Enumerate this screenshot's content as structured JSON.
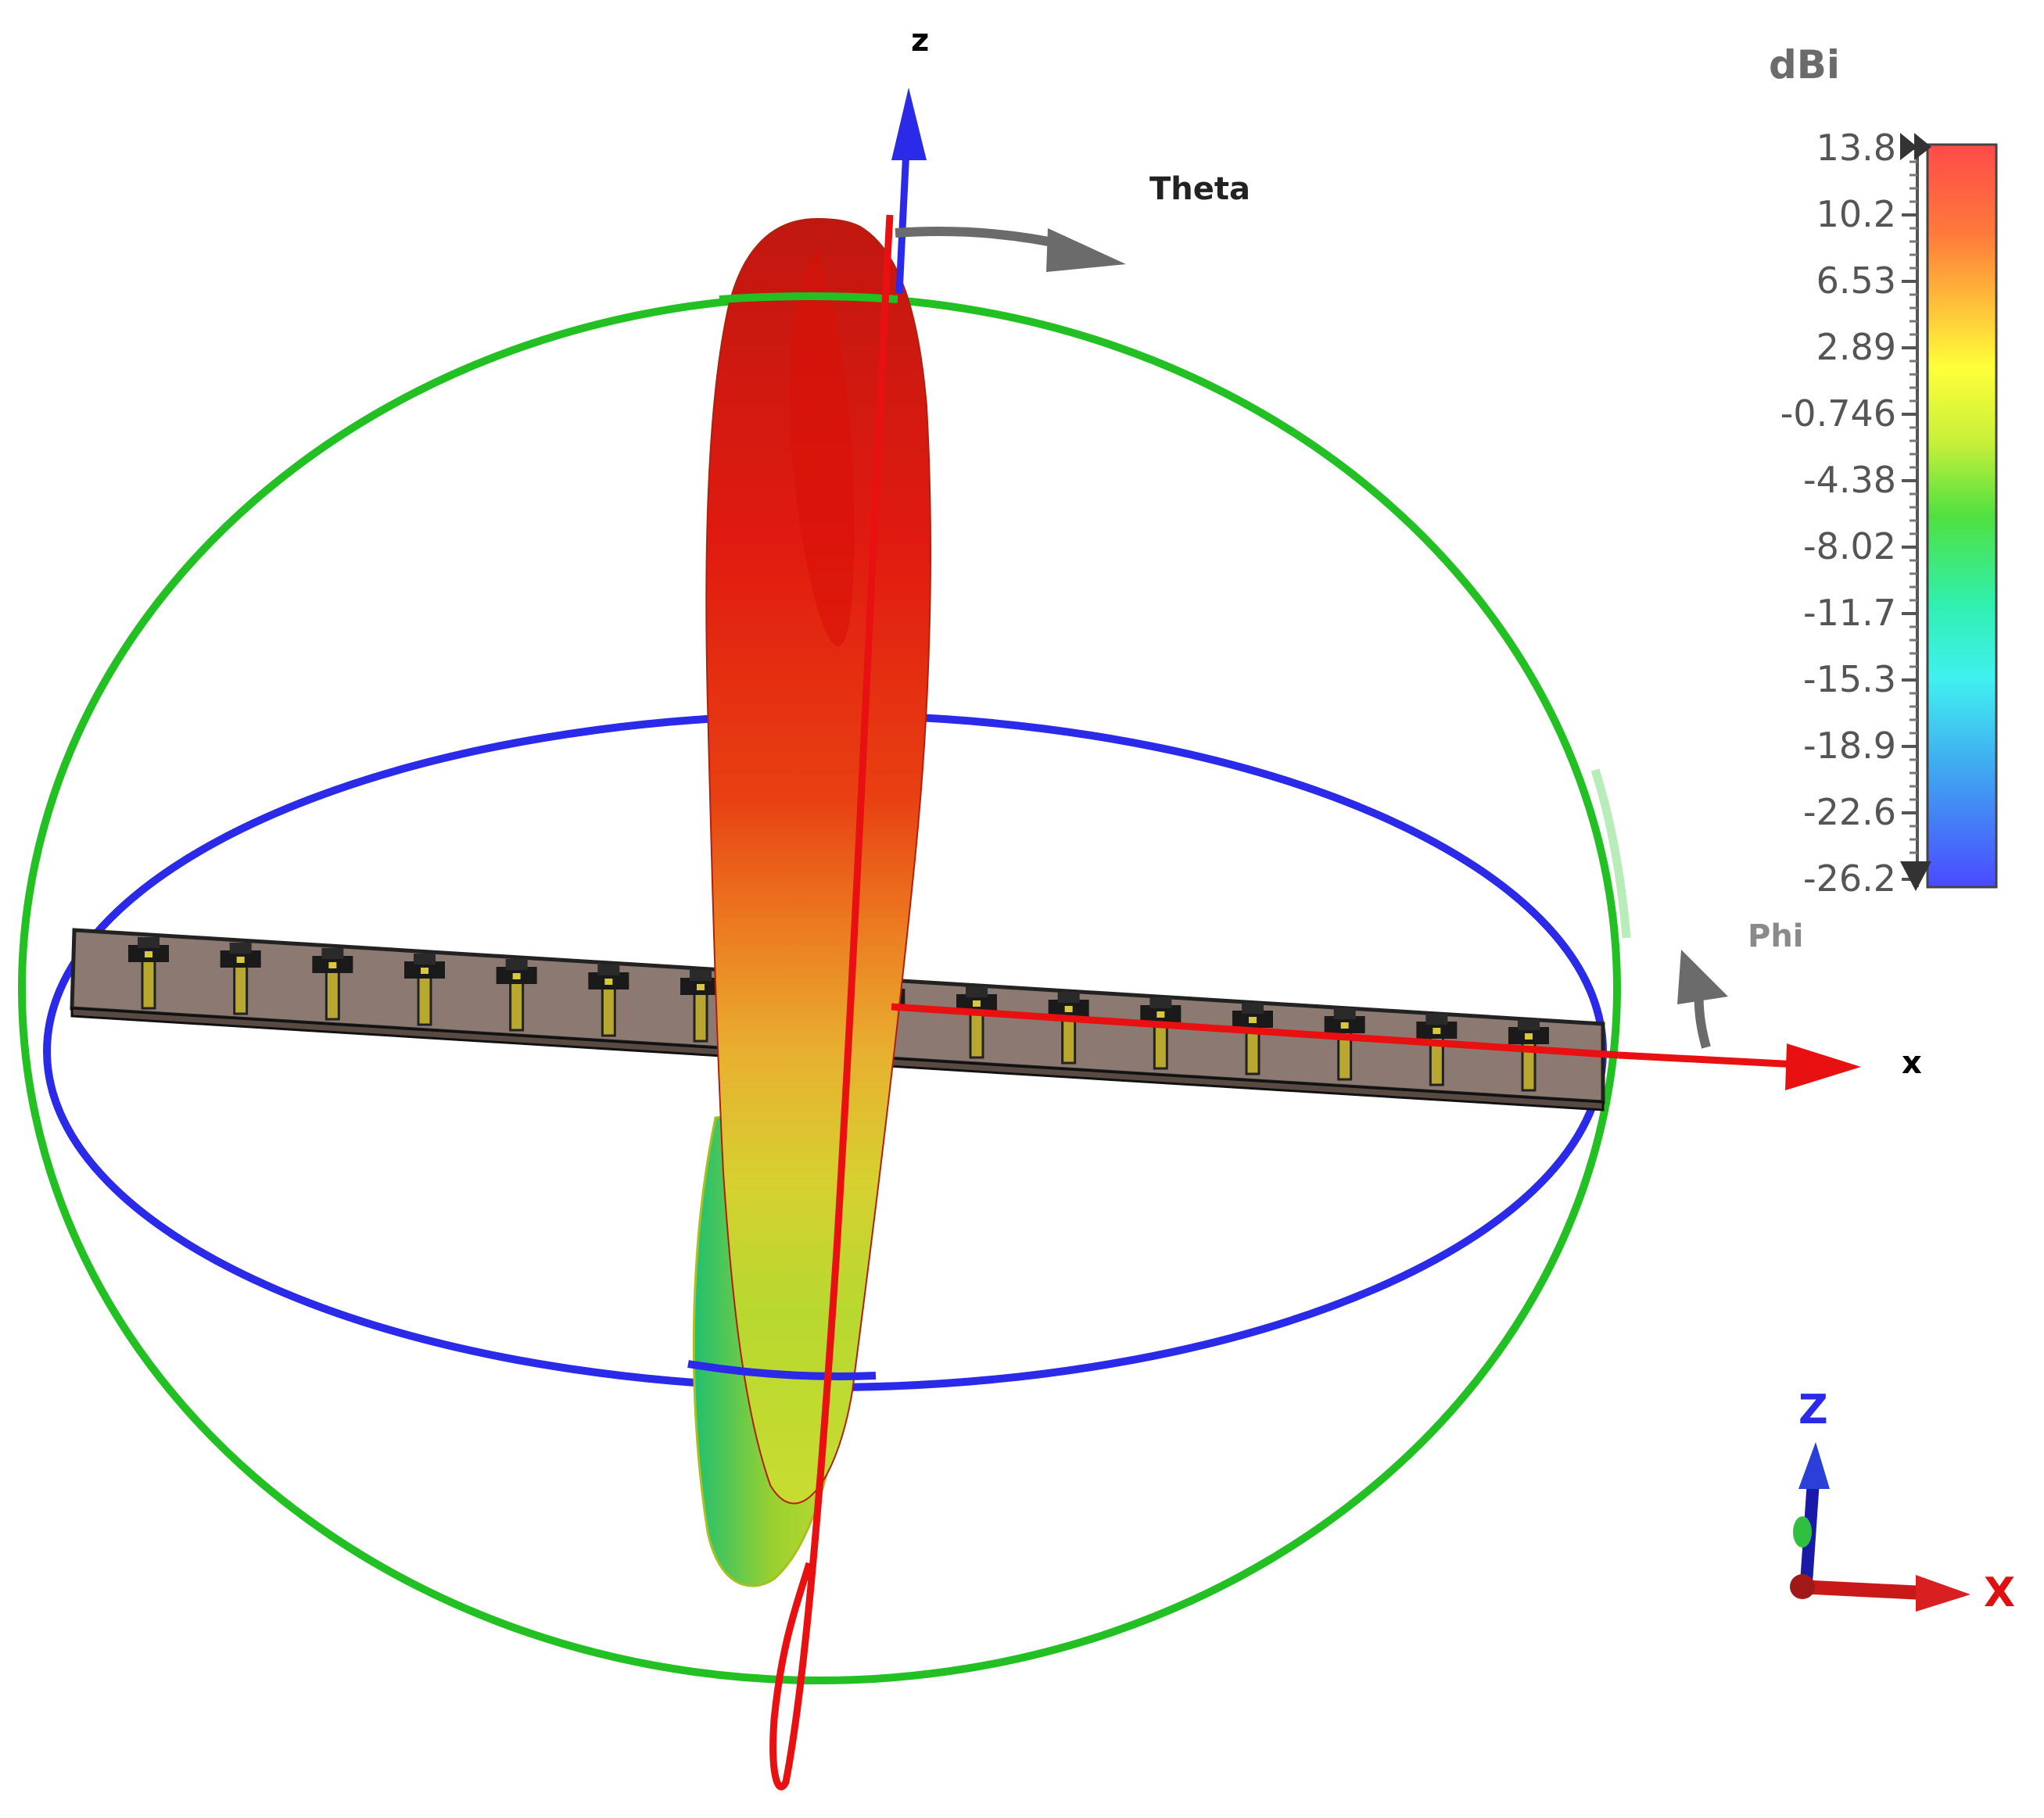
{
  "axes": {
    "z_label": "z",
    "x_label": "x",
    "theta_label": "Theta",
    "phi_label": "Phi"
  },
  "legend": {
    "unit": "dBi",
    "ticks": [
      "13.8",
      "10.2",
      "6.53",
      "2.89",
      "-0.746",
      "-4.38",
      "-8.02",
      "-11.7",
      "-15.3",
      "-18.9",
      "-22.6",
      "-26.2"
    ],
    "colors": [
      "#ff4a4a",
      "#ff8a3a",
      "#ffd23a",
      "#ffff3a",
      "#c8f03a",
      "#60e040",
      "#30e070",
      "#30f0c8",
      "#40f0f0",
      "#40b8f0",
      "#4080f0",
      "#4a4aff"
    ]
  },
  "triad": {
    "z_label": "Z",
    "x_label": "X"
  },
  "array": {
    "element_count": 16
  }
}
